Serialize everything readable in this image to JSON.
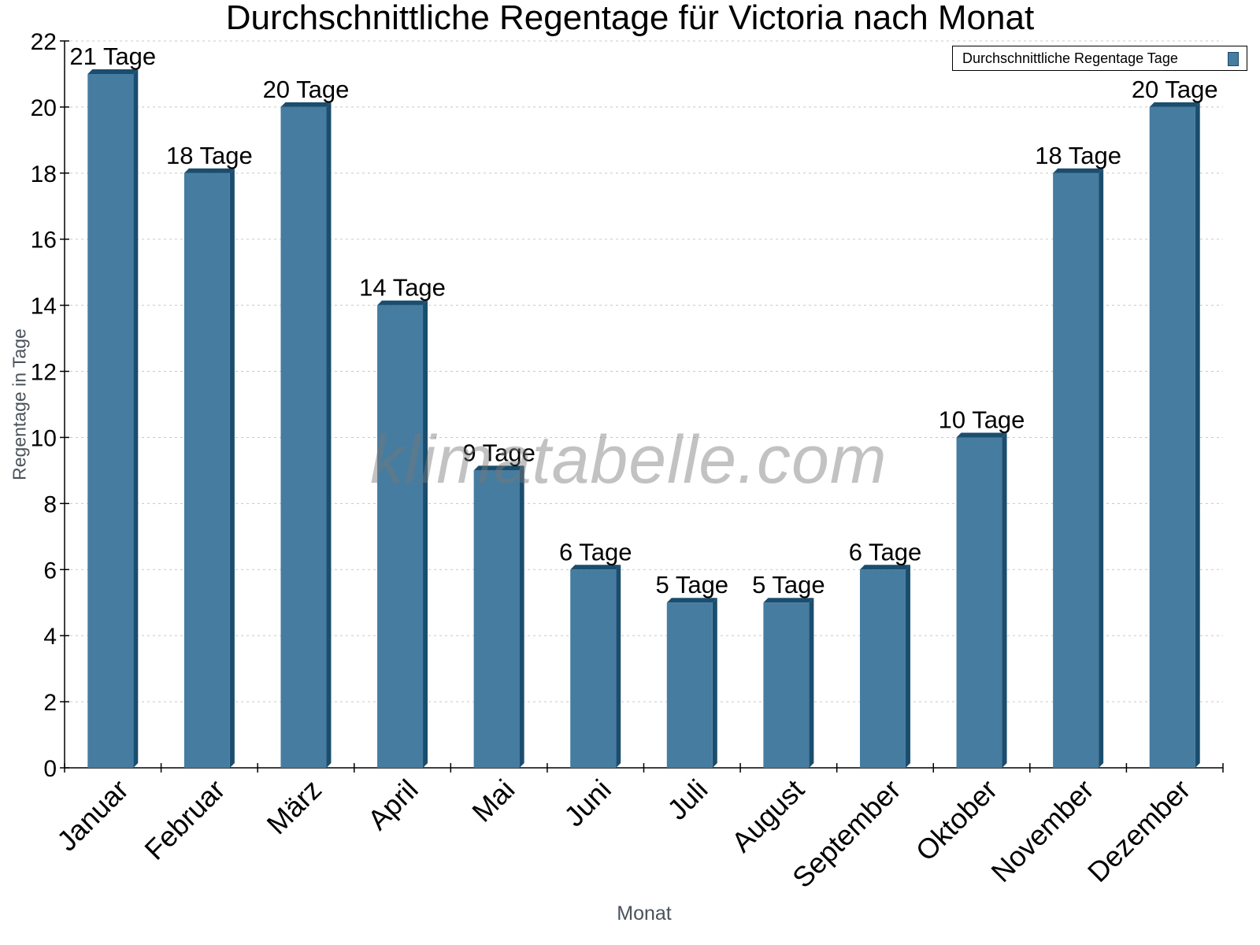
{
  "chart_data": {
    "type": "bar",
    "title": "Durchschnittliche Regentage für Victoria nach Monat",
    "xlabel": "Monat",
    "ylabel": "Regentage in Tage",
    "categories": [
      "Januar",
      "Februar",
      "März",
      "April",
      "Mai",
      "Juni",
      "Juli",
      "August",
      "September",
      "Oktober",
      "November",
      "Dezember"
    ],
    "series": [
      {
        "name": "Durchschnittliche Regentage Tage",
        "values": [
          21,
          18,
          20,
          14,
          9,
          6,
          5,
          5,
          6,
          10,
          18,
          20
        ],
        "color": "#467ca0"
      }
    ],
    "data_labels": [
      "21 Tage",
      "18 Tage",
      "20 Tage",
      "14 Tage",
      "9 Tage",
      "6 Tage",
      "5 Tage",
      "5 Tage",
      "6 Tage",
      "10 Tage",
      "18 Tage",
      "20 Tage"
    ],
    "ylim": [
      0,
      22
    ],
    "yticks": [
      0,
      2,
      4,
      6,
      8,
      10,
      12,
      14,
      16,
      18,
      20,
      22
    ],
    "grid": true,
    "legend_position": "top-right",
    "watermark": "klimatabelle.com"
  }
}
